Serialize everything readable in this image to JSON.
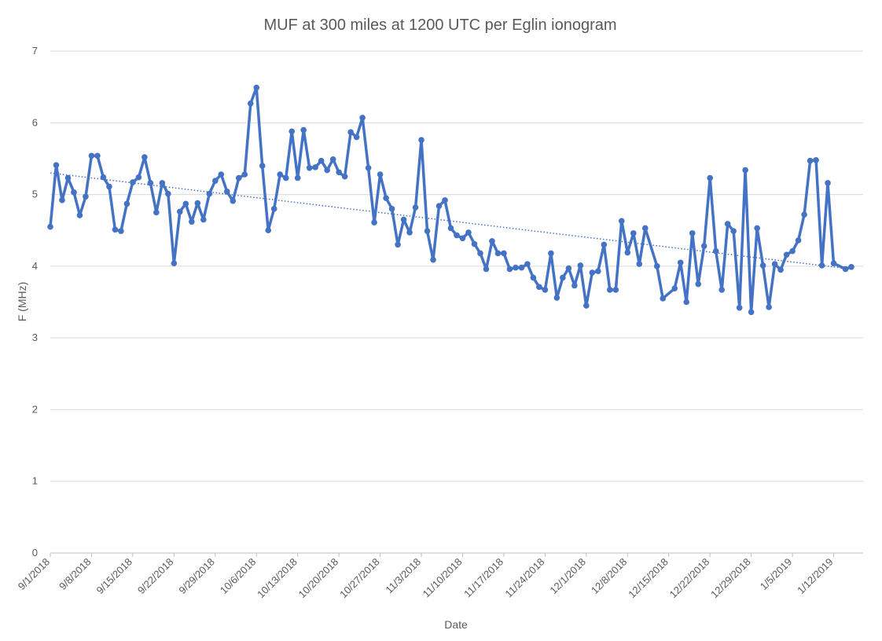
{
  "chart_data": {
    "type": "line",
    "title": "MUF at 300 miles at 1200 UTC per Eglin ionogram",
    "xlabel": "Date",
    "ylabel": "F (MHz)",
    "ylim": [
      0,
      7
    ],
    "yticks": [
      0,
      1,
      2,
      3,
      4,
      5,
      6,
      7
    ],
    "xlim": [
      "2018-09-01",
      "2019-01-17"
    ],
    "xticks": [
      "2018-09-01",
      "2018-09-08",
      "2018-09-15",
      "2018-09-22",
      "2018-09-29",
      "2018-10-06",
      "2018-10-13",
      "2018-10-20",
      "2018-10-27",
      "2018-11-03",
      "2018-11-10",
      "2018-11-17",
      "2018-11-24",
      "2018-12-01",
      "2018-12-08",
      "2018-12-15",
      "2018-12-22",
      "2018-12-29",
      "2019-01-05",
      "2019-01-12"
    ],
    "xtick_labels": [
      "9/1/2018",
      "9/8/2018",
      "9/15/2018",
      "9/22/2018",
      "9/29/2018",
      "10/6/2018",
      "10/13/2018",
      "10/20/2018",
      "10/27/2018",
      "11/3/2018",
      "11/10/2018",
      "11/17/2018",
      "11/24/2018",
      "12/1/2018",
      "12/8/2018",
      "12/15/2018",
      "12/22/2018",
      "12/29/2018",
      "1/5/2019",
      "1/12/2019"
    ],
    "grid": true,
    "legend": "none",
    "series": [
      {
        "color": "#4472c4",
        "points": [
          [
            "2018-09-01",
            4.55
          ],
          [
            "2018-09-02",
            5.41
          ],
          [
            "2018-09-03",
            4.92
          ],
          [
            "2018-09-04",
            5.23
          ],
          [
            "2018-09-05",
            5.03
          ],
          [
            "2018-09-06",
            4.71
          ],
          [
            "2018-09-07",
            4.97
          ],
          [
            "2018-09-08",
            5.54
          ],
          [
            "2018-09-09",
            5.54
          ],
          [
            "2018-09-10",
            5.24
          ],
          [
            "2018-09-11",
            5.11
          ],
          [
            "2018-09-12",
            4.51
          ],
          [
            "2018-09-13",
            4.49
          ],
          [
            "2018-09-14",
            4.87
          ],
          [
            "2018-09-15",
            5.17
          ],
          [
            "2018-09-16",
            5.24
          ],
          [
            "2018-09-17",
            5.52
          ],
          [
            "2018-09-18",
            5.16
          ],
          [
            "2018-09-19",
            4.75
          ],
          [
            "2018-09-20",
            5.16
          ],
          [
            "2018-09-21",
            5.01
          ],
          [
            "2018-09-22",
            4.04
          ],
          [
            "2018-09-23",
            4.76
          ],
          [
            "2018-09-24",
            4.87
          ],
          [
            "2018-09-25",
            4.62
          ],
          [
            "2018-09-26",
            4.88
          ],
          [
            "2018-09-27",
            4.65
          ],
          [
            "2018-09-28",
            5.01
          ],
          [
            "2018-09-29",
            5.19
          ],
          [
            "2018-09-30",
            5.28
          ],
          [
            "2018-10-01",
            5.04
          ],
          [
            "2018-10-02",
            4.91
          ],
          [
            "2018-10-03",
            5.23
          ],
          [
            "2018-10-04",
            5.28
          ],
          [
            "2018-10-05",
            6.27
          ],
          [
            "2018-10-06",
            6.49
          ],
          [
            "2018-10-07",
            5.4
          ],
          [
            "2018-10-08",
            4.5
          ],
          [
            "2018-10-09",
            4.8
          ],
          [
            "2018-10-10",
            5.28
          ],
          [
            "2018-10-11",
            5.23
          ],
          [
            "2018-10-12",
            5.88
          ],
          [
            "2018-10-13",
            5.23
          ],
          [
            "2018-10-14",
            5.9
          ],
          [
            "2018-10-15",
            5.37
          ],
          [
            "2018-10-16",
            5.38
          ],
          [
            "2018-10-17",
            5.47
          ],
          [
            "2018-10-18",
            5.34
          ],
          [
            "2018-10-19",
            5.49
          ],
          [
            "2018-10-20",
            5.31
          ],
          [
            "2018-10-21",
            5.25
          ],
          [
            "2018-10-22",
            5.87
          ],
          [
            "2018-10-23",
            5.8
          ],
          [
            "2018-10-24",
            6.07
          ],
          [
            "2018-10-25",
            5.37
          ],
          [
            "2018-10-26",
            4.61
          ],
          [
            "2018-10-27",
            5.28
          ],
          [
            "2018-10-28",
            4.95
          ],
          [
            "2018-10-29",
            4.8
          ],
          [
            "2018-10-30",
            4.3
          ],
          [
            "2018-10-31",
            4.65
          ],
          [
            "2018-11-01",
            4.47
          ],
          [
            "2018-11-02",
            4.82
          ],
          [
            "2018-11-03",
            5.76
          ],
          [
            "2018-11-04",
            4.49
          ],
          [
            "2018-11-05",
            4.09
          ],
          [
            "2018-11-06",
            4.84
          ],
          [
            "2018-11-07",
            4.92
          ],
          [
            "2018-11-08",
            4.53
          ],
          [
            "2018-11-09",
            4.43
          ],
          [
            "2018-11-10",
            4.39
          ],
          [
            "2018-11-11",
            4.47
          ],
          [
            "2018-11-12",
            4.31
          ],
          [
            "2018-11-13",
            4.18
          ],
          [
            "2018-11-14",
            3.96
          ],
          [
            "2018-11-15",
            4.35
          ],
          [
            "2018-11-16",
            4.18
          ],
          [
            "2018-11-17",
            4.18
          ],
          [
            "2018-11-18",
            3.96
          ],
          [
            "2018-11-19",
            3.98
          ],
          [
            "2018-11-20",
            3.98
          ],
          [
            "2018-11-21",
            4.03
          ],
          [
            "2018-11-22",
            3.84
          ],
          [
            "2018-11-23",
            3.71
          ],
          [
            "2018-11-24",
            3.67
          ],
          [
            "2018-11-25",
            4.18
          ],
          [
            "2018-11-26",
            3.56
          ],
          [
            "2018-11-27",
            3.84
          ],
          [
            "2018-11-28",
            3.97
          ],
          [
            "2018-11-29",
            3.73
          ],
          [
            "2018-11-30",
            4.01
          ],
          [
            "2018-12-01",
            3.45
          ],
          [
            "2018-12-02",
            3.91
          ],
          [
            "2018-12-03",
            3.93
          ],
          [
            "2018-12-04",
            4.3
          ],
          [
            "2018-12-05",
            3.67
          ],
          [
            "2018-12-06",
            3.67
          ],
          [
            "2018-12-07",
            4.63
          ],
          [
            "2018-12-08",
            4.19
          ],
          [
            "2018-12-09",
            4.46
          ],
          [
            "2018-12-10",
            4.03
          ],
          [
            "2018-12-11",
            4.53
          ],
          [
            "2018-12-13",
            4.0
          ],
          [
            "2018-12-14",
            3.55
          ],
          [
            "2018-12-16",
            3.69
          ],
          [
            "2018-12-17",
            4.05
          ],
          [
            "2018-12-18",
            3.5
          ],
          [
            "2018-12-19",
            4.46
          ],
          [
            "2018-12-20",
            3.75
          ],
          [
            "2018-12-21",
            4.28
          ],
          [
            "2018-12-22",
            5.23
          ],
          [
            "2018-12-23",
            4.21
          ],
          [
            "2018-12-24",
            3.67
          ],
          [
            "2018-12-25",
            4.59
          ],
          [
            "2018-12-26",
            4.49
          ],
          [
            "2018-12-27",
            3.42
          ],
          [
            "2018-12-28",
            5.34
          ],
          [
            "2018-12-29",
            3.36
          ],
          [
            "2018-12-30",
            4.53
          ],
          [
            "2018-12-31",
            4.01
          ],
          [
            "2019-01-01",
            3.43
          ],
          [
            "2019-01-02",
            4.03
          ],
          [
            "2019-01-03",
            3.95
          ],
          [
            "2019-01-04",
            4.16
          ],
          [
            "2019-01-05",
            4.21
          ],
          [
            "2019-01-06",
            4.36
          ],
          [
            "2019-01-07",
            4.72
          ],
          [
            "2019-01-08",
            5.47
          ],
          [
            "2019-01-09",
            5.48
          ],
          [
            "2019-01-10",
            4.01
          ],
          [
            "2019-01-11",
            5.16
          ],
          [
            "2019-01-12",
            4.04
          ],
          [
            "2019-01-14",
            3.96
          ],
          [
            "2019-01-15",
            3.99
          ]
        ]
      }
    ],
    "trendline": {
      "type": "linear",
      "style": "dotted",
      "color": "#4472c4",
      "start": [
        "2018-09-01",
        5.3
      ],
      "end": [
        "2019-01-15",
        3.96
      ]
    }
  }
}
